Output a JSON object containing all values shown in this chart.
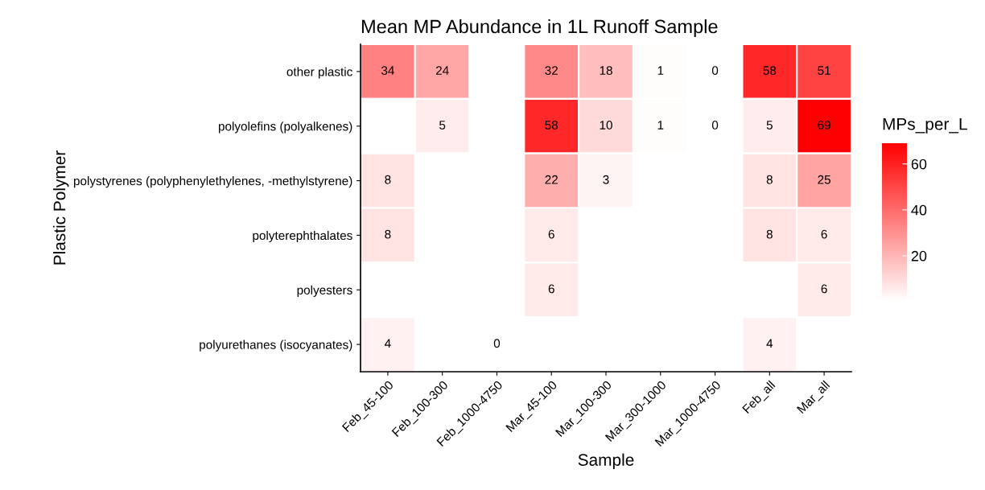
{
  "chart_data": {
    "type": "heatmap",
    "title": "Mean MP Abundance in 1L Runoff Sample",
    "xlabel": "Sample",
    "ylabel": "Plastic Polymer",
    "clabel": "MPs_per_L",
    "categories": [
      "Feb_45-100",
      "Feb_100-300",
      "Feb_1000-4750",
      "Mar_45-100",
      "Mar_100-300",
      "Mar_300-1000",
      "Mar_1000-4750",
      "Feb_all",
      "Mar_all"
    ],
    "y_categories": [
      "other plastic",
      "polyolefins (polyalkenes)",
      "polystyrenes (polyphenylethylenes, -methylstyrene)",
      "polyterephthalates",
      "polyesters",
      "polyurethanes (isocyanates)"
    ],
    "cells": [
      [
        34,
        24,
        null,
        32,
        18,
        1,
        0,
        58,
        51
      ],
      [
        null,
        5,
        null,
        58,
        10,
        1,
        0,
        5,
        69
      ],
      [
        8,
        null,
        null,
        22,
        3,
        null,
        null,
        8,
        25
      ],
      [
        8,
        null,
        null,
        6,
        null,
        null,
        null,
        8,
        6
      ],
      [
        null,
        null,
        null,
        6,
        null,
        null,
        null,
        null,
        6
      ],
      [
        4,
        null,
        0,
        null,
        null,
        null,
        null,
        4,
        null
      ]
    ],
    "colors": [
      "#ffffff",
      "#ff0000"
    ],
    "clim": [
      0,
      69
    ],
    "cticks": [
      20,
      40,
      60
    ],
    "data_labels": true,
    "grid": false
  }
}
